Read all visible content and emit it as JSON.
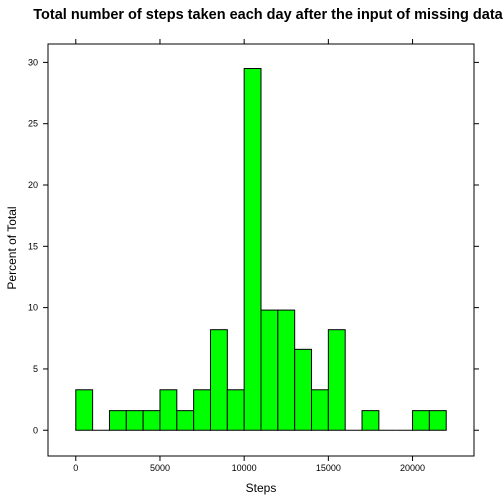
{
  "chart_data": {
    "type": "bar",
    "title": "Total number of steps taken each day after the input of missing data",
    "xlabel": "Steps",
    "ylabel": "Percent of Total",
    "bin_edges": [
      0,
      1000,
      2000,
      3000,
      4000,
      5000,
      6000,
      7000,
      8000,
      9000,
      10000,
      11000,
      12000,
      13000,
      14000,
      15000,
      16000,
      17000,
      18000,
      19000,
      20000,
      21000,
      22000
    ],
    "values": [
      3.3,
      0,
      1.6,
      1.6,
      1.6,
      3.3,
      1.6,
      3.3,
      8.2,
      3.3,
      29.5,
      9.8,
      9.8,
      6.6,
      3.3,
      8.2,
      0,
      1.6,
      0,
      0,
      1.6,
      1.6
    ],
    "xlim": [
      -1650,
      23650
    ],
    "ylim": [
      -2.1,
      31.5
    ],
    "x_ticks": [
      0,
      5000,
      10000,
      15000,
      20000
    ],
    "y_ticks": [
      0,
      5,
      10,
      15,
      20,
      25,
      30
    ],
    "bar_color": "#00ff00",
    "grid": false,
    "legend": "none"
  }
}
